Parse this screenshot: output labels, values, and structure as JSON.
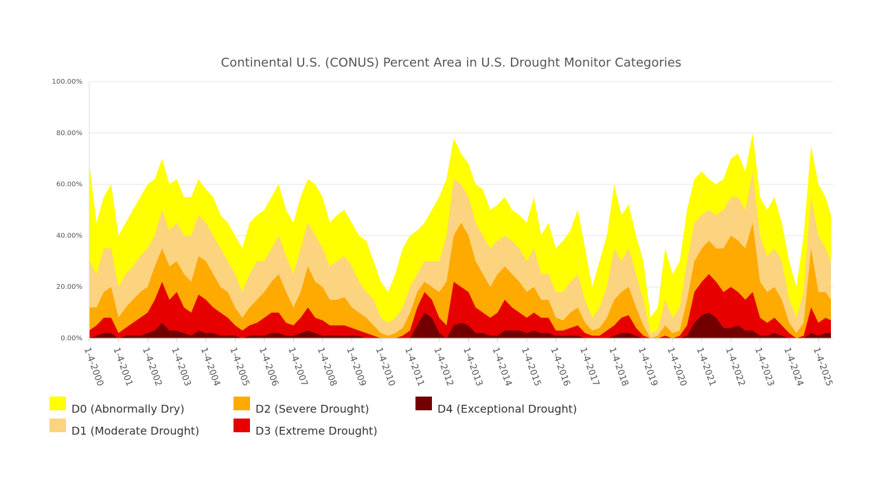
{
  "chart_data": {
    "type": "area",
    "title": "Continental U.S. (CONUS) Percent Area in U.S. Drought Monitor Categories",
    "x": [
      "2000-01-04",
      "2000-04-04",
      "2000-07-04",
      "2000-10-04",
      "2001-01-04",
      "2001-04-04",
      "2001-07-04",
      "2001-10-04",
      "2002-01-04",
      "2002-04-04",
      "2002-07-04",
      "2002-10-04",
      "2003-01-04",
      "2003-04-04",
      "2003-07-04",
      "2003-10-04",
      "2004-01-04",
      "2004-04-04",
      "2004-07-04",
      "2004-10-04",
      "2005-01-04",
      "2005-04-04",
      "2005-07-04",
      "2005-10-04",
      "2006-01-04",
      "2006-04-04",
      "2006-07-04",
      "2006-10-04",
      "2007-01-04",
      "2007-04-04",
      "2007-07-04",
      "2007-10-04",
      "2008-01-04",
      "2008-04-04",
      "2008-07-04",
      "2008-10-04",
      "2009-01-04",
      "2009-04-04",
      "2009-07-04",
      "2009-10-04",
      "2010-01-04",
      "2010-04-04",
      "2010-07-04",
      "2010-10-04",
      "2011-01-04",
      "2011-04-04",
      "2011-07-04",
      "2011-10-04",
      "2012-01-04",
      "2012-04-04",
      "2012-07-04",
      "2012-10-04",
      "2013-01-04",
      "2013-04-04",
      "2013-07-04",
      "2013-10-04",
      "2014-01-04",
      "2014-04-04",
      "2014-07-04",
      "2014-10-04",
      "2015-01-04",
      "2015-04-04",
      "2015-07-04",
      "2015-10-04",
      "2016-01-04",
      "2016-04-04",
      "2016-07-04",
      "2016-10-04",
      "2017-01-04",
      "2017-04-04",
      "2017-07-04",
      "2017-10-04",
      "2018-01-04",
      "2018-04-04",
      "2018-07-04",
      "2018-10-04",
      "2019-01-04",
      "2019-04-04",
      "2019-07-04",
      "2019-10-04",
      "2020-01-04",
      "2020-04-04",
      "2020-07-04",
      "2020-10-04",
      "2021-01-04",
      "2021-04-04",
      "2021-07-04",
      "2021-10-04",
      "2022-01-04",
      "2022-04-04",
      "2022-07-04",
      "2022-10-04",
      "2023-01-04",
      "2023-04-04",
      "2023-07-04",
      "2023-10-04",
      "2024-01-04",
      "2024-04-04",
      "2024-07-04",
      "2024-10-04",
      "2025-01-04",
      "2025-04-04",
      "2025-06-10"
    ],
    "series": [
      {
        "name": "D0 (Abnormally Dry)",
        "color": "#ffff00",
        "values": [
          68,
          45,
          55,
          60,
          40,
          45,
          50,
          55,
          60,
          62,
          70,
          60,
          62,
          55,
          55,
          62,
          58,
          55,
          48,
          45,
          40,
          35,
          45,
          48,
          50,
          55,
          60,
          50,
          45,
          55,
          62,
          60,
          55,
          45,
          48,
          50,
          45,
          40,
          38,
          30,
          22,
          18,
          25,
          35,
          40,
          42,
          45,
          50,
          55,
          62,
          78,
          72,
          68,
          60,
          58,
          50,
          52,
          55,
          50,
          48,
          45,
          55,
          40,
          45,
          35,
          38,
          42,
          50,
          35,
          20,
          30,
          40,
          60,
          48,
          52,
          40,
          30,
          8,
          12,
          35,
          25,
          30,
          50,
          62,
          65,
          62,
          60,
          62,
          70,
          72,
          65,
          80,
          55,
          50,
          55,
          45,
          30,
          20,
          40,
          75,
          60,
          55,
          48
        ]
      },
      {
        "name": "D1 (Moderate Drought)",
        "color": "#fcd37f",
        "values": [
          30,
          25,
          35,
          35,
          20,
          25,
          28,
          32,
          35,
          40,
          50,
          42,
          45,
          40,
          40,
          48,
          45,
          40,
          35,
          30,
          25,
          18,
          25,
          30,
          30,
          35,
          40,
          32,
          25,
          35,
          45,
          40,
          35,
          28,
          30,
          32,
          28,
          22,
          18,
          15,
          8,
          6,
          8,
          12,
          20,
          25,
          30,
          30,
          30,
          40,
          62,
          60,
          55,
          45,
          40,
          35,
          38,
          40,
          38,
          35,
          30,
          35,
          25,
          25,
          18,
          18,
          22,
          25,
          15,
          8,
          12,
          20,
          35,
          30,
          35,
          25,
          15,
          2,
          3,
          15,
          8,
          12,
          30,
          45,
          48,
          50,
          48,
          50,
          55,
          55,
          50,
          65,
          40,
          32,
          35,
          30,
          15,
          8,
          18,
          55,
          40,
          35,
          30
        ]
      },
      {
        "name": "D2 (Severe Drought)",
        "color": "#ffaa00",
        "values": [
          12,
          12,
          18,
          20,
          8,
          12,
          15,
          18,
          20,
          28,
          35,
          28,
          30,
          25,
          22,
          32,
          30,
          25,
          20,
          18,
          12,
          8,
          12,
          15,
          18,
          22,
          25,
          18,
          12,
          18,
          28,
          22,
          20,
          15,
          15,
          16,
          12,
          10,
          8,
          5,
          2,
          1,
          2,
          4,
          10,
          18,
          22,
          20,
          18,
          22,
          40,
          45,
          40,
          30,
          25,
          20,
          25,
          28,
          25,
          22,
          18,
          20,
          15,
          15,
          8,
          7,
          10,
          12,
          6,
          3,
          4,
          8,
          15,
          18,
          20,
          12,
          5,
          0,
          1,
          5,
          2,
          3,
          15,
          30,
          35,
          38,
          35,
          35,
          40,
          38,
          35,
          45,
          22,
          18,
          20,
          15,
          6,
          2,
          6,
          35,
          18,
          18,
          15
        ]
      },
      {
        "name": "D3 (Extreme Drought)",
        "color": "#e60000",
        "values": [
          3,
          5,
          8,
          8,
          2,
          4,
          6,
          8,
          10,
          15,
          22,
          15,
          18,
          12,
          10,
          17,
          15,
          12,
          10,
          8,
          5,
          3,
          5,
          6,
          8,
          10,
          10,
          6,
          5,
          8,
          12,
          8,
          7,
          5,
          5,
          5,
          4,
          3,
          2,
          1,
          0,
          0,
          0,
          1,
          3,
          12,
          18,
          15,
          8,
          5,
          22,
          20,
          18,
          12,
          10,
          8,
          10,
          15,
          12,
          10,
          8,
          10,
          8,
          8,
          3,
          3,
          4,
          5,
          2,
          1,
          1,
          3,
          5,
          8,
          9,
          4,
          1,
          0,
          0,
          1,
          0,
          1,
          5,
          18,
          22,
          25,
          22,
          18,
          20,
          18,
          15,
          18,
          8,
          6,
          8,
          5,
          2,
          0,
          1,
          12,
          6,
          8,
          7
        ]
      },
      {
        "name": "D4 (Exceptional Drought)",
        "color": "#730000",
        "values": [
          0,
          1,
          2,
          2,
          0,
          1,
          1,
          1,
          2,
          3,
          6,
          3,
          3,
          2,
          1,
          3,
          2,
          2,
          1,
          1,
          1,
          0,
          1,
          1,
          1,
          2,
          2,
          1,
          1,
          2,
          3,
          2,
          1,
          1,
          1,
          1,
          1,
          1,
          0,
          0,
          0,
          0,
          0,
          0,
          0,
          5,
          10,
          8,
          2,
          0,
          5,
          6,
          5,
          2,
          2,
          1,
          1,
          3,
          3,
          3,
          2,
          3,
          2,
          2,
          1,
          1,
          1,
          1,
          0,
          0,
          0,
          0,
          1,
          2,
          2,
          1,
          0,
          0,
          0,
          0,
          0,
          0,
          1,
          6,
          9,
          10,
          8,
          4,
          4,
          5,
          3,
          3,
          1,
          1,
          2,
          1,
          0,
          0,
          0,
          2,
          1,
          2,
          2
        ]
      }
    ],
    "xlim": [
      "2000-01-04",
      "2025-06-10"
    ],
    "xticks": [
      {
        "value": "2000-01-04",
        "label": "1-4-2000"
      },
      {
        "value": "2001-01-04",
        "label": "1-4-2001"
      },
      {
        "value": "2002-01-04",
        "label": "1-4-2002"
      },
      {
        "value": "2003-01-04",
        "label": "1-4-2003"
      },
      {
        "value": "2004-01-04",
        "label": "1-4-2004"
      },
      {
        "value": "2005-01-04",
        "label": "1-4-2005"
      },
      {
        "value": "2006-01-04",
        "label": "1-4-2006"
      },
      {
        "value": "2007-01-04",
        "label": "1-4-2007"
      },
      {
        "value": "2008-01-04",
        "label": "1-4-2008"
      },
      {
        "value": "2009-01-04",
        "label": "1-4-2009"
      },
      {
        "value": "2010-01-04",
        "label": "1-4-2010"
      },
      {
        "value": "2011-01-04",
        "label": "1-4-2011"
      },
      {
        "value": "2012-01-04",
        "label": "1-4-2012"
      },
      {
        "value": "2013-01-04",
        "label": "1-4-2013"
      },
      {
        "value": "2014-01-04",
        "label": "1-4-2014"
      },
      {
        "value": "2015-01-04",
        "label": "1-4-2015"
      },
      {
        "value": "2016-01-04",
        "label": "1-4-2016"
      },
      {
        "value": "2017-01-04",
        "label": "1-4-2017"
      },
      {
        "value": "2018-01-04",
        "label": "1-4-2018"
      },
      {
        "value": "2019-01-04",
        "label": "1-4-2019"
      },
      {
        "value": "2020-01-04",
        "label": "1-4-2020"
      },
      {
        "value": "2021-01-04",
        "label": "1-4-2021"
      },
      {
        "value": "2022-01-04",
        "label": "1-4-2022"
      },
      {
        "value": "2023-01-04",
        "label": "1-4-2023"
      },
      {
        "value": "2024-01-04",
        "label": "1-4-2024"
      },
      {
        "value": "2025-01-04",
        "label": "1-4-2025"
      }
    ],
    "ylim": [
      0,
      100
    ],
    "yticks": [
      {
        "value": 0,
        "label": "0.00%"
      },
      {
        "value": 20,
        "label": "20.00%"
      },
      {
        "value": 40,
        "label": "40.00%"
      },
      {
        "value": 60,
        "label": "60.00%"
      },
      {
        "value": 80,
        "label": "80.00%"
      },
      {
        "value": 100,
        "label": "100.00%"
      }
    ],
    "grid": true
  }
}
